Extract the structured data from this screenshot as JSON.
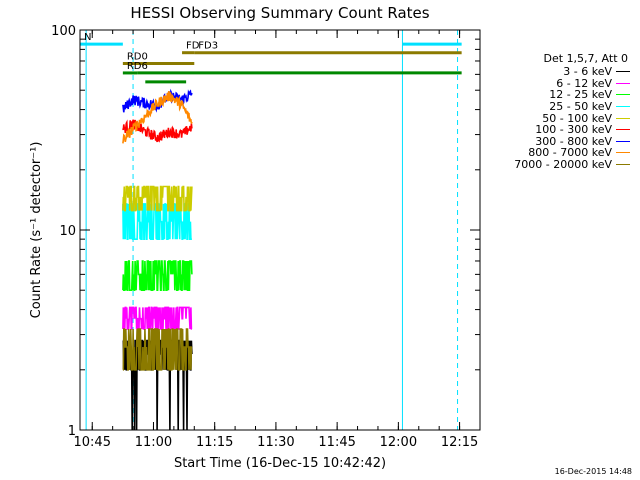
{
  "chart_data": {
    "type": "line",
    "title": "HESSI Observing Summary Count Rates",
    "xlabel": "Start Time (16-Dec-15 10:42:42)",
    "ylabel": "Count Rate (s⁻¹ detector⁻¹)",
    "y_scale": "log",
    "ylim": [
      1,
      100
    ],
    "x_range_minutes": [
      642,
      740
    ],
    "x_ticks": [
      {
        "t": 645,
        "label": "10:45"
      },
      {
        "t": 660,
        "label": "11:00"
      },
      {
        "t": 675,
        "label": "11:15"
      },
      {
        "t": 690,
        "label": "11:30"
      },
      {
        "t": 705,
        "label": "11:45"
      },
      {
        "t": 720,
        "label": "12:00"
      },
      {
        "t": 735,
        "label": "12:15"
      }
    ],
    "y_ticks": [
      {
        "v": 1,
        "label": "1"
      },
      {
        "v": 10,
        "label": "10"
      },
      {
        "v": 100,
        "label": "100"
      }
    ],
    "legend": {
      "header": "Det 1,5,7, Att 0",
      "placement": "right"
    },
    "data_window": [
      652.5,
      669.5
    ],
    "series": [
      {
        "name": "3 - 6 keV",
        "color": "#000000",
        "lo": 2.0,
        "hi": 2.8,
        "base": 2.4,
        "dips": true
      },
      {
        "name": "6 - 12 keV",
        "color": "#ff00ff",
        "lo": 3.2,
        "hi": 4.1,
        "base": 3.6,
        "dips": false
      },
      {
        "name": "12 - 25 keV",
        "color": "#00ff00",
        "lo": 5.0,
        "hi": 7.0,
        "base": 6.0,
        "dips": false
      },
      {
        "name": "25 - 50 keV",
        "color": "#00ffff",
        "lo": 9.0,
        "hi": 13.5,
        "base": 11.0,
        "dips": false
      },
      {
        "name": "50 - 100 keV",
        "color": "#cccc00",
        "lo": 12.5,
        "hi": 16.5,
        "base": 14.5,
        "dips": false
      },
      {
        "name": "100 - 300 keV",
        "color": "#ff0000",
        "shape": [
          [
            652.5,
            32
          ],
          [
            655,
            34
          ],
          [
            658,
            31
          ],
          [
            661,
            29
          ],
          [
            664,
            31
          ],
          [
            667,
            30
          ],
          [
            669.5,
            33
          ]
        ]
      },
      {
        "name": "300 - 800 keV",
        "color": "#0000ff",
        "shape": [
          [
            652.5,
            40
          ],
          [
            655,
            45
          ],
          [
            658,
            43
          ],
          [
            661,
            42
          ],
          [
            664,
            47
          ],
          [
            667,
            45
          ],
          [
            669.5,
            48
          ]
        ]
      },
      {
        "name": "800 - 7000 keV",
        "color": "#ff8800",
        "shape": [
          [
            652.5,
            28
          ],
          [
            655,
            32
          ],
          [
            658,
            37
          ],
          [
            661,
            43
          ],
          [
            664,
            47
          ],
          [
            667,
            42
          ],
          [
            669.5,
            34
          ]
        ]
      },
      {
        "name": "7000 - 20000 keV",
        "color": "#8b7a00",
        "lo": 2.0,
        "hi": 3.2,
        "base": 2.6,
        "dips": false
      }
    ],
    "state_bars": [
      {
        "label": "N",
        "color": "#00e0ff",
        "y": 85,
        "t0": 642,
        "t1": 652.5
      },
      {
        "label": "",
        "color": "#00e0ff",
        "y": 85,
        "t0": 721,
        "t1": 735.5
      },
      {
        "label": "FD",
        "color": "#8b7a00",
        "y": 77,
        "t0": 667,
        "t1": 670
      },
      {
        "label": "FD3",
        "color": "#8b7a00",
        "y": 77,
        "t0": 670,
        "t1": 735.5
      },
      {
        "label": "RD0",
        "color": "#8b7a00",
        "y": 68,
        "t0": 652.5,
        "t1": 670
      },
      {
        "label": "RD6",
        "color": "#008800",
        "y": 61,
        "t0": 652.5,
        "t1": 656
      },
      {
        "label": "",
        "color": "#008800",
        "y": 61,
        "t0": 656,
        "t1": 735.5
      },
      {
        "label": "",
        "color": "#008800",
        "y": 55,
        "t0": 658,
        "t1": 668
      }
    ],
    "vlines": [
      {
        "t": 643.5,
        "color": "#00e0ff",
        "style": "solid"
      },
      {
        "t": 655,
        "color": "#00e0ff",
        "style": "dashed"
      },
      {
        "t": 721,
        "color": "#00e0ff",
        "style": "solid"
      },
      {
        "t": 734.5,
        "color": "#00e0ff",
        "style": "dashed"
      }
    ]
  },
  "footer": {
    "timestamp": "16-Dec-2015 14:48"
  }
}
